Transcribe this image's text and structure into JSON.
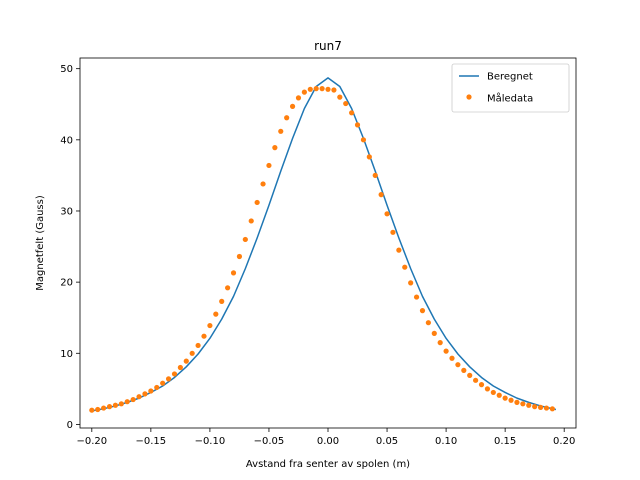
{
  "chart_data": {
    "type": "line",
    "title": "run7",
    "xlabel": "Avstand fra senter av spolen (m)",
    "ylabel": "Magnetfelt (Gauss)",
    "xlim": [
      -0.21,
      0.21
    ],
    "ylim": [
      -0.5,
      51.5
    ],
    "xticks": [
      -0.2,
      -0.15,
      -0.1,
      -0.05,
      0.0,
      0.05,
      0.1,
      0.15,
      0.2
    ],
    "xtick_labels": [
      "−0.20",
      "−0.15",
      "−0.10",
      "−0.05",
      "0.00",
      "0.05",
      "0.10",
      "0.15",
      "0.20"
    ],
    "yticks": [
      0,
      10,
      20,
      30,
      40,
      50
    ],
    "ytick_labels": [
      "0",
      "10",
      "20",
      "30",
      "40",
      "50"
    ],
    "grid": false,
    "legend_position": "top-right",
    "series": [
      {
        "name": "Beregnet",
        "kind": "line",
        "color": "#1f77b4",
        "x": [
          -0.2,
          -0.19,
          -0.18,
          -0.17,
          -0.16,
          -0.15,
          -0.14,
          -0.13,
          -0.12,
          -0.11,
          -0.1,
          -0.09,
          -0.08,
          -0.07,
          -0.06,
          -0.05,
          -0.04,
          -0.03,
          -0.02,
          -0.01,
          0.0,
          0.01,
          0.02,
          0.03,
          0.04,
          0.05,
          0.06,
          0.07,
          0.08,
          0.09,
          0.1,
          0.11,
          0.12,
          0.13,
          0.14,
          0.15,
          0.16,
          0.17,
          0.18,
          0.19,
          0.193
        ],
        "y": [
          1.9,
          2.2,
          2.6,
          3.1,
          3.7,
          4.5,
          5.4,
          6.6,
          8.1,
          9.9,
          12.1,
          14.8,
          18.0,
          21.9,
          26.2,
          30.8,
          35.6,
          40.2,
          44.4,
          47.5,
          48.7,
          47.5,
          44.4,
          40.2,
          35.6,
          30.8,
          26.2,
          21.9,
          18.0,
          14.8,
          12.1,
          9.9,
          8.1,
          6.6,
          5.4,
          4.5,
          3.7,
          3.1,
          2.6,
          2.2,
          2.1
        ]
      },
      {
        "name": "Måledata",
        "kind": "scatter",
        "color": "#ff7f0e",
        "x": [
          -0.2,
          -0.195,
          -0.19,
          -0.185,
          -0.18,
          -0.175,
          -0.17,
          -0.165,
          -0.16,
          -0.155,
          -0.15,
          -0.145,
          -0.14,
          -0.135,
          -0.13,
          -0.125,
          -0.12,
          -0.115,
          -0.11,
          -0.105,
          -0.1,
          -0.095,
          -0.09,
          -0.085,
          -0.08,
          -0.075,
          -0.07,
          -0.065,
          -0.06,
          -0.055,
          -0.05,
          -0.045,
          -0.04,
          -0.035,
          -0.03,
          -0.025,
          -0.02,
          -0.015,
          -0.01,
          -0.005,
          0.0,
          0.005,
          0.01,
          0.015,
          0.02,
          0.025,
          0.03,
          0.035,
          0.04,
          0.045,
          0.05,
          0.055,
          0.06,
          0.065,
          0.07,
          0.075,
          0.08,
          0.085,
          0.09,
          0.095,
          0.1,
          0.105,
          0.11,
          0.115,
          0.12,
          0.125,
          0.13,
          0.135,
          0.14,
          0.145,
          0.15,
          0.155,
          0.16,
          0.165,
          0.17,
          0.175,
          0.18,
          0.185,
          0.19
        ],
        "y": [
          2.0,
          2.1,
          2.3,
          2.5,
          2.7,
          2.9,
          3.2,
          3.5,
          3.9,
          4.3,
          4.7,
          5.2,
          5.8,
          6.4,
          7.1,
          8.0,
          8.9,
          10.0,
          11.1,
          12.4,
          13.9,
          15.5,
          17.3,
          19.2,
          21.3,
          23.6,
          26.0,
          28.6,
          31.2,
          33.8,
          36.4,
          38.9,
          41.2,
          43.1,
          44.7,
          45.9,
          46.7,
          47.1,
          47.2,
          47.2,
          47.1,
          47.0,
          46.0,
          45.1,
          43.8,
          42.1,
          40.0,
          37.6,
          35.0,
          32.3,
          29.6,
          27.0,
          24.5,
          22.1,
          19.9,
          17.9,
          16.0,
          14.3,
          12.8,
          11.5,
          10.3,
          9.3,
          8.4,
          7.6,
          6.9,
          6.2,
          5.6,
          5.0,
          4.5,
          4.1,
          3.7,
          3.4,
          3.1,
          2.9,
          2.7,
          2.5,
          2.4,
          2.3,
          2.2
        ]
      }
    ]
  }
}
